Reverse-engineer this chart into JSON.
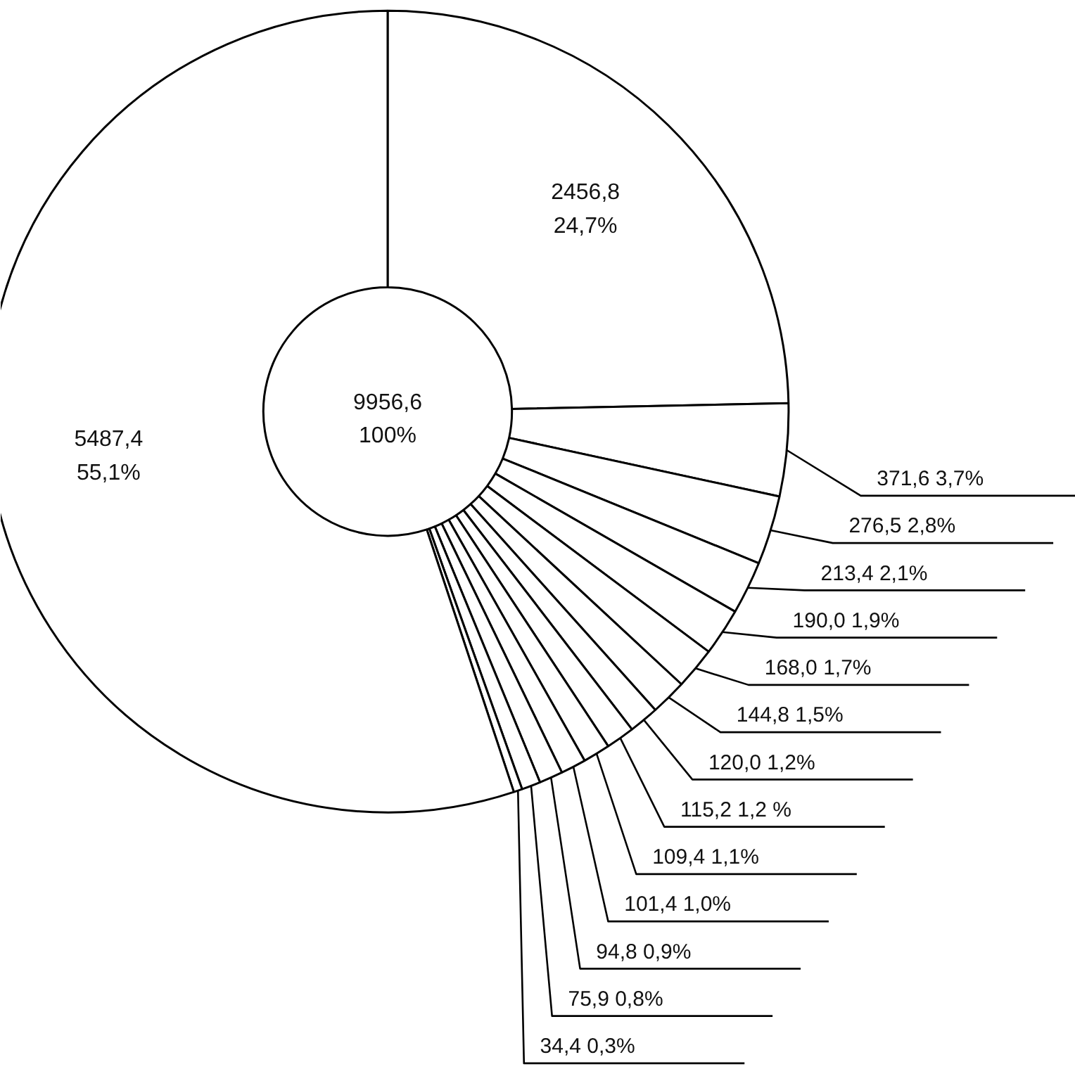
{
  "chart_data": {
    "type": "donut",
    "categories": [
      null,
      null,
      null,
      null,
      null,
      null,
      null,
      null,
      null,
      null,
      null,
      null,
      null,
      null,
      null
    ],
    "values": [
      2456.8,
      371.6,
      276.5,
      213.4,
      190.0,
      168.0,
      144.8,
      120.0,
      115.2,
      109.4,
      101.4,
      94.8,
      75.9,
      34.4,
      5487.4
    ],
    "colors": [
      "#ffffff",
      "#ffffff",
      "#ffffff",
      "#ffffff",
      "#ffffff",
      "#ffffff",
      "#ffffff",
      "#ffffff",
      "#ffffff",
      "#ffffff",
      "#ffffff",
      "#ffffff",
      "#ffffff",
      "#ffffff",
      "#ffffff"
    ],
    "value_labels": [
      "2456,8\n24,7%",
      "371,6   3,7%",
      "276,5   2,8%",
      "213,4   2,1%",
      "190,0   1,9%",
      "168,0   1,7%",
      "144,8   1,5%",
      "120,0   1,2%",
      "115,2   1,2 %",
      "109,4   1,1%",
      "101,4   1,0%",
      "94,8   0,9%",
      "75,9   0,8%",
      "34,4   0,3%",
      "5487,4\n55,1%"
    ],
    "annotations": [
      "9956,6\n100%"
    ]
  }
}
